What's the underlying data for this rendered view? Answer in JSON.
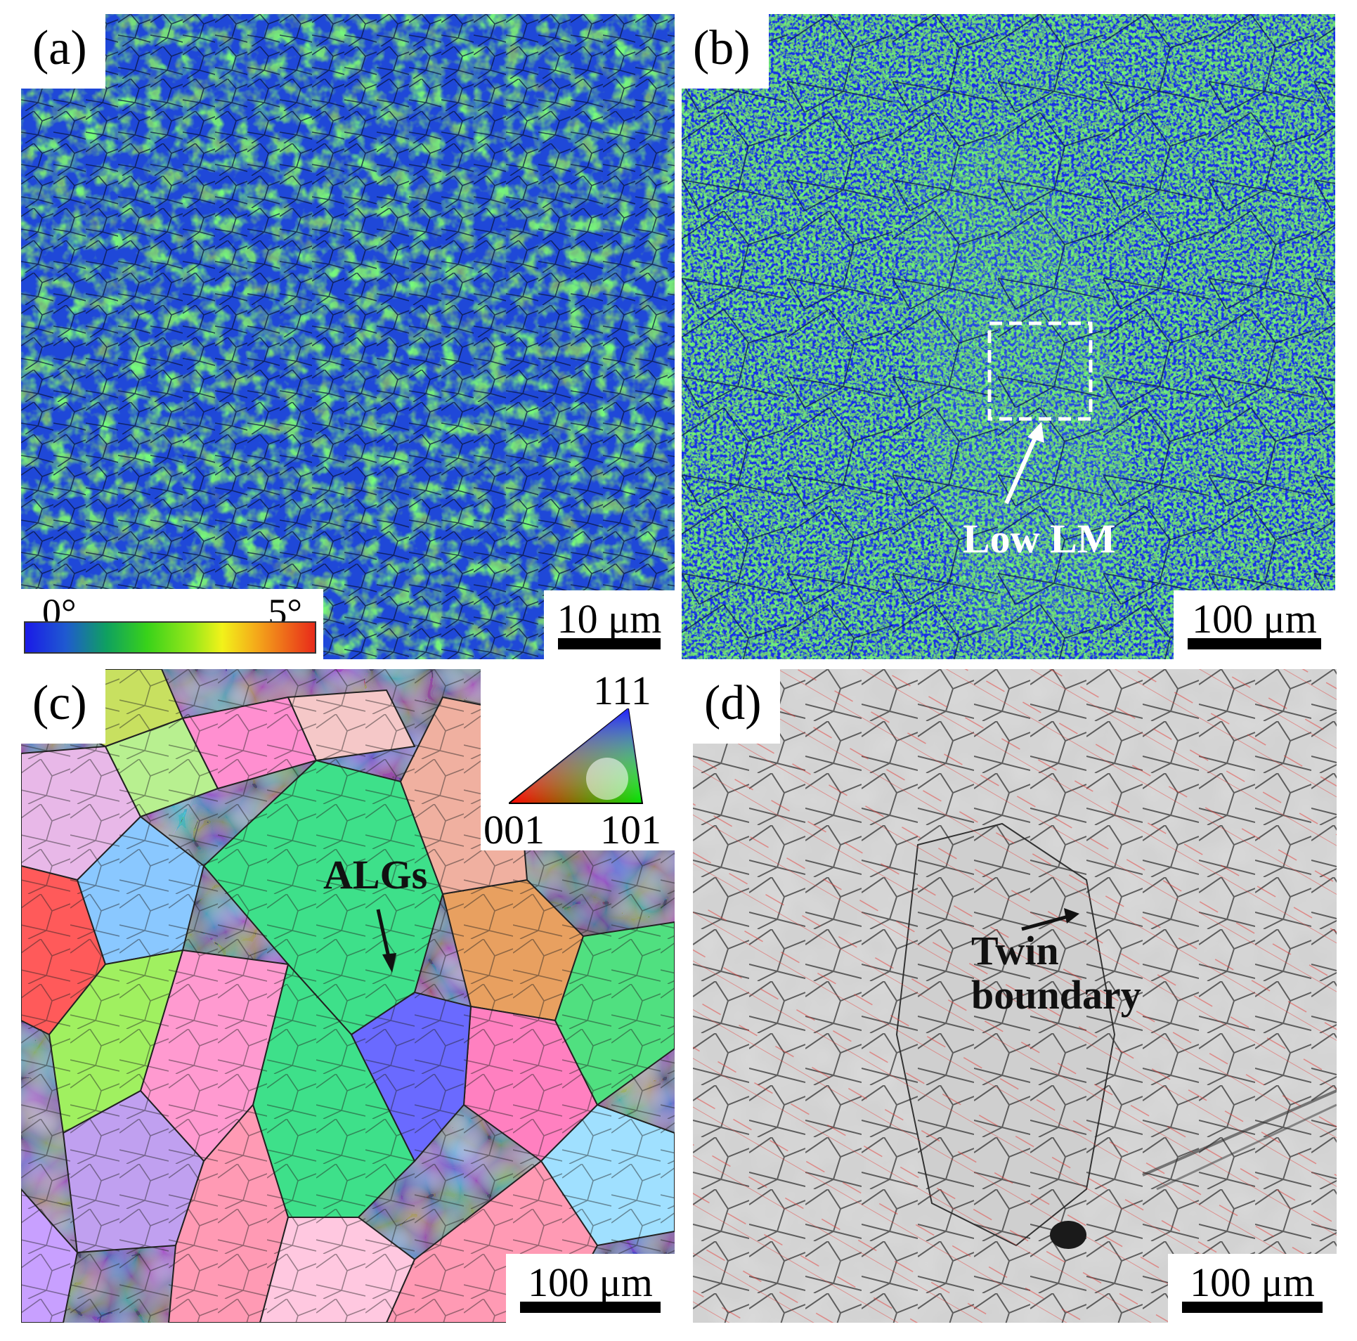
{
  "panels": {
    "a": {
      "label": "(a)",
      "scale": "10 μm"
    },
    "b": {
      "label": "(b)",
      "scale": "100 μm",
      "annotation": "Low LM"
    },
    "c": {
      "label": "(c)",
      "scale": "100 μm",
      "annotation": "ALGs"
    },
    "d": {
      "label": "(d)",
      "scale": "100 μm",
      "annotation_line1": "Twin",
      "annotation_line2": "boundary"
    }
  },
  "colorbar": {
    "min_label": "0°",
    "max_label": "5°",
    "range_deg": [
      0,
      5
    ]
  },
  "ipf_legend": {
    "top": "111",
    "bottom_left": "001",
    "bottom_right": "101"
  },
  "colors": {
    "kam_low": "#1a3cf0",
    "kam_mid": "#2ecc40",
    "grain_boundary": "#1a1a1a",
    "twin_boundary": "#e53935",
    "annotation_white": "#ffffff",
    "annotation_dark": "#111111"
  }
}
